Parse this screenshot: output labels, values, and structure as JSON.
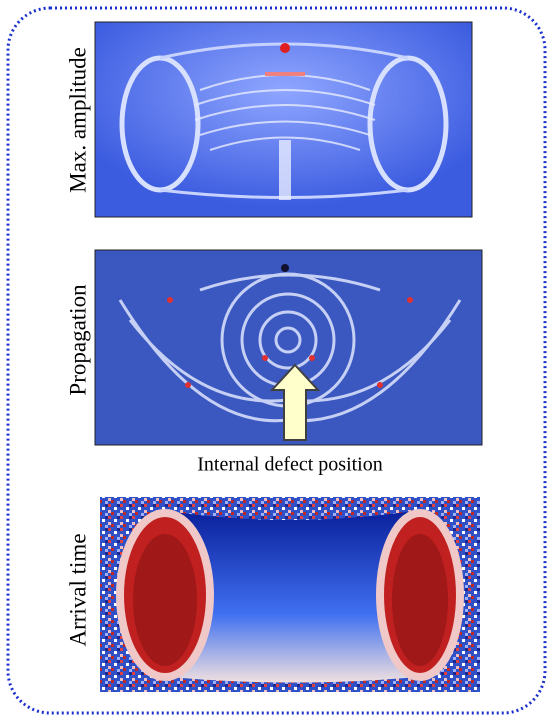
{
  "panels": [
    {
      "label": "Max. amplitude"
    },
    {
      "label": "Propagation",
      "caption": "Internal defect position"
    },
    {
      "label": "Arrival time"
    }
  ]
}
